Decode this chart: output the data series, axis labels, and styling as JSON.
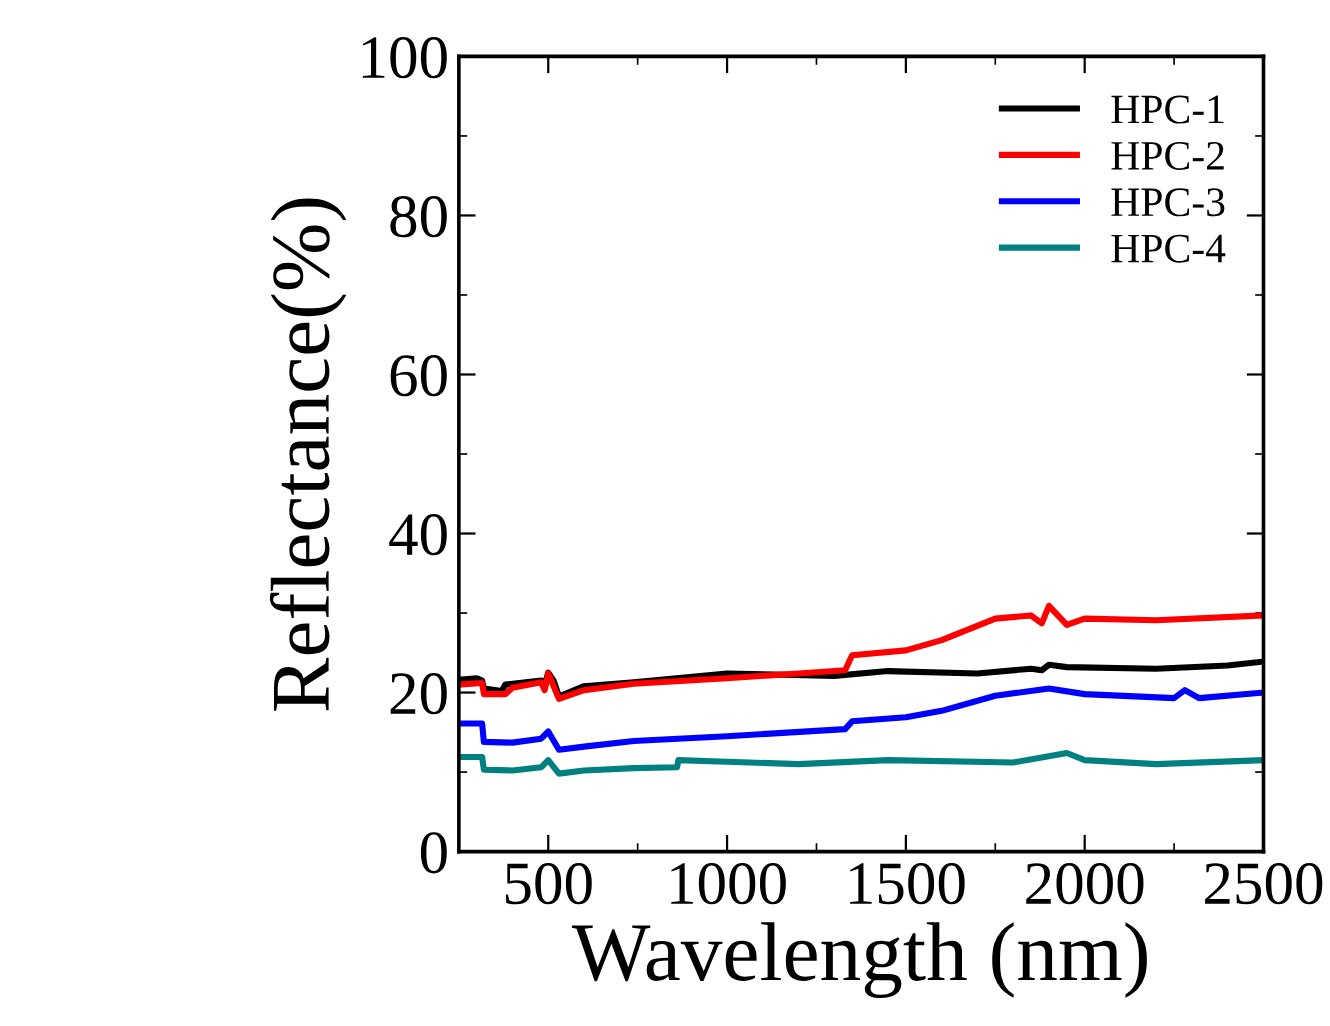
{
  "chart_data": {
    "type": "line",
    "xlabel": "Wavelength (nm)",
    "ylabel": "Reflectance(%)",
    "xlim": [
      250,
      2500
    ],
    "xticks": [
      500,
      1000,
      1500,
      2000,
      2500
    ],
    "ylim": [
      0,
      100
    ],
    "yticks": [
      0,
      20,
      40,
      60,
      80,
      100
    ],
    "grid": false,
    "legend": "top right",
    "marker": "none",
    "line_style": "solid",
    "series": [
      {
        "name": "HPC-1",
        "color": "#000000",
        "x": [
          250,
          300,
          315,
          320,
          370,
          380,
          480,
          490,
          500,
          515,
          530,
          600,
          739,
          1000,
          1300,
          1450,
          1700,
          1850,
          1880,
          1900,
          1950,
          2200,
          2400,
          2500
        ],
        "values": [
          21.6,
          21.8,
          21.5,
          20.5,
          20.2,
          21.0,
          21.5,
          21.0,
          22.5,
          21.5,
          19.5,
          20.8,
          21.3,
          22.4,
          22.1,
          22.7,
          22.4,
          23.0,
          22.8,
          23.5,
          23.2,
          23.0,
          23.4,
          23.9
        ]
      },
      {
        "name": "HPC-2",
        "color": "#ff0000",
        "x": [
          250,
          315,
          320,
          380,
          400,
          480,
          490,
          500,
          530,
          600,
          739,
          1000,
          1200,
          1330,
          1350,
          1500,
          1600,
          1750,
          1850,
          1880,
          1900,
          1950,
          2000,
          2200,
          2500
        ],
        "values": [
          21.0,
          21.2,
          19.8,
          19.8,
          20.6,
          21.3,
          20.3,
          22.4,
          19.2,
          20.3,
          21.1,
          21.8,
          22.4,
          22.8,
          24.7,
          25.3,
          26.6,
          29.3,
          29.7,
          28.7,
          30.9,
          28.5,
          29.3,
          29.1,
          29.7
        ]
      },
      {
        "name": "HPC-3",
        "color": "#0000ff",
        "x": [
          250,
          315,
          320,
          400,
          480,
          500,
          530,
          600,
          739,
          1000,
          1330,
          1350,
          1500,
          1600,
          1750,
          1900,
          2000,
          2250,
          2280,
          2320,
          2500
        ],
        "values": [
          16.1,
          16.1,
          13.8,
          13.7,
          14.2,
          15.1,
          12.8,
          13.2,
          13.9,
          14.5,
          15.4,
          16.4,
          16.9,
          17.7,
          19.6,
          20.5,
          19.8,
          19.3,
          20.3,
          19.3,
          20.0
        ]
      },
      {
        "name": "HPC-4",
        "color": "#008080",
        "x": [
          250,
          315,
          320,
          400,
          480,
          500,
          530,
          600,
          739,
          860,
          864,
          1000,
          1200,
          1450,
          1800,
          1950,
          2000,
          2200,
          2500
        ],
        "values": [
          11.9,
          11.9,
          10.3,
          10.2,
          10.6,
          11.5,
          9.8,
          10.2,
          10.5,
          10.6,
          11.5,
          11.3,
          11.0,
          11.5,
          11.2,
          12.4,
          11.5,
          11.0,
          11.5
        ]
      }
    ]
  }
}
